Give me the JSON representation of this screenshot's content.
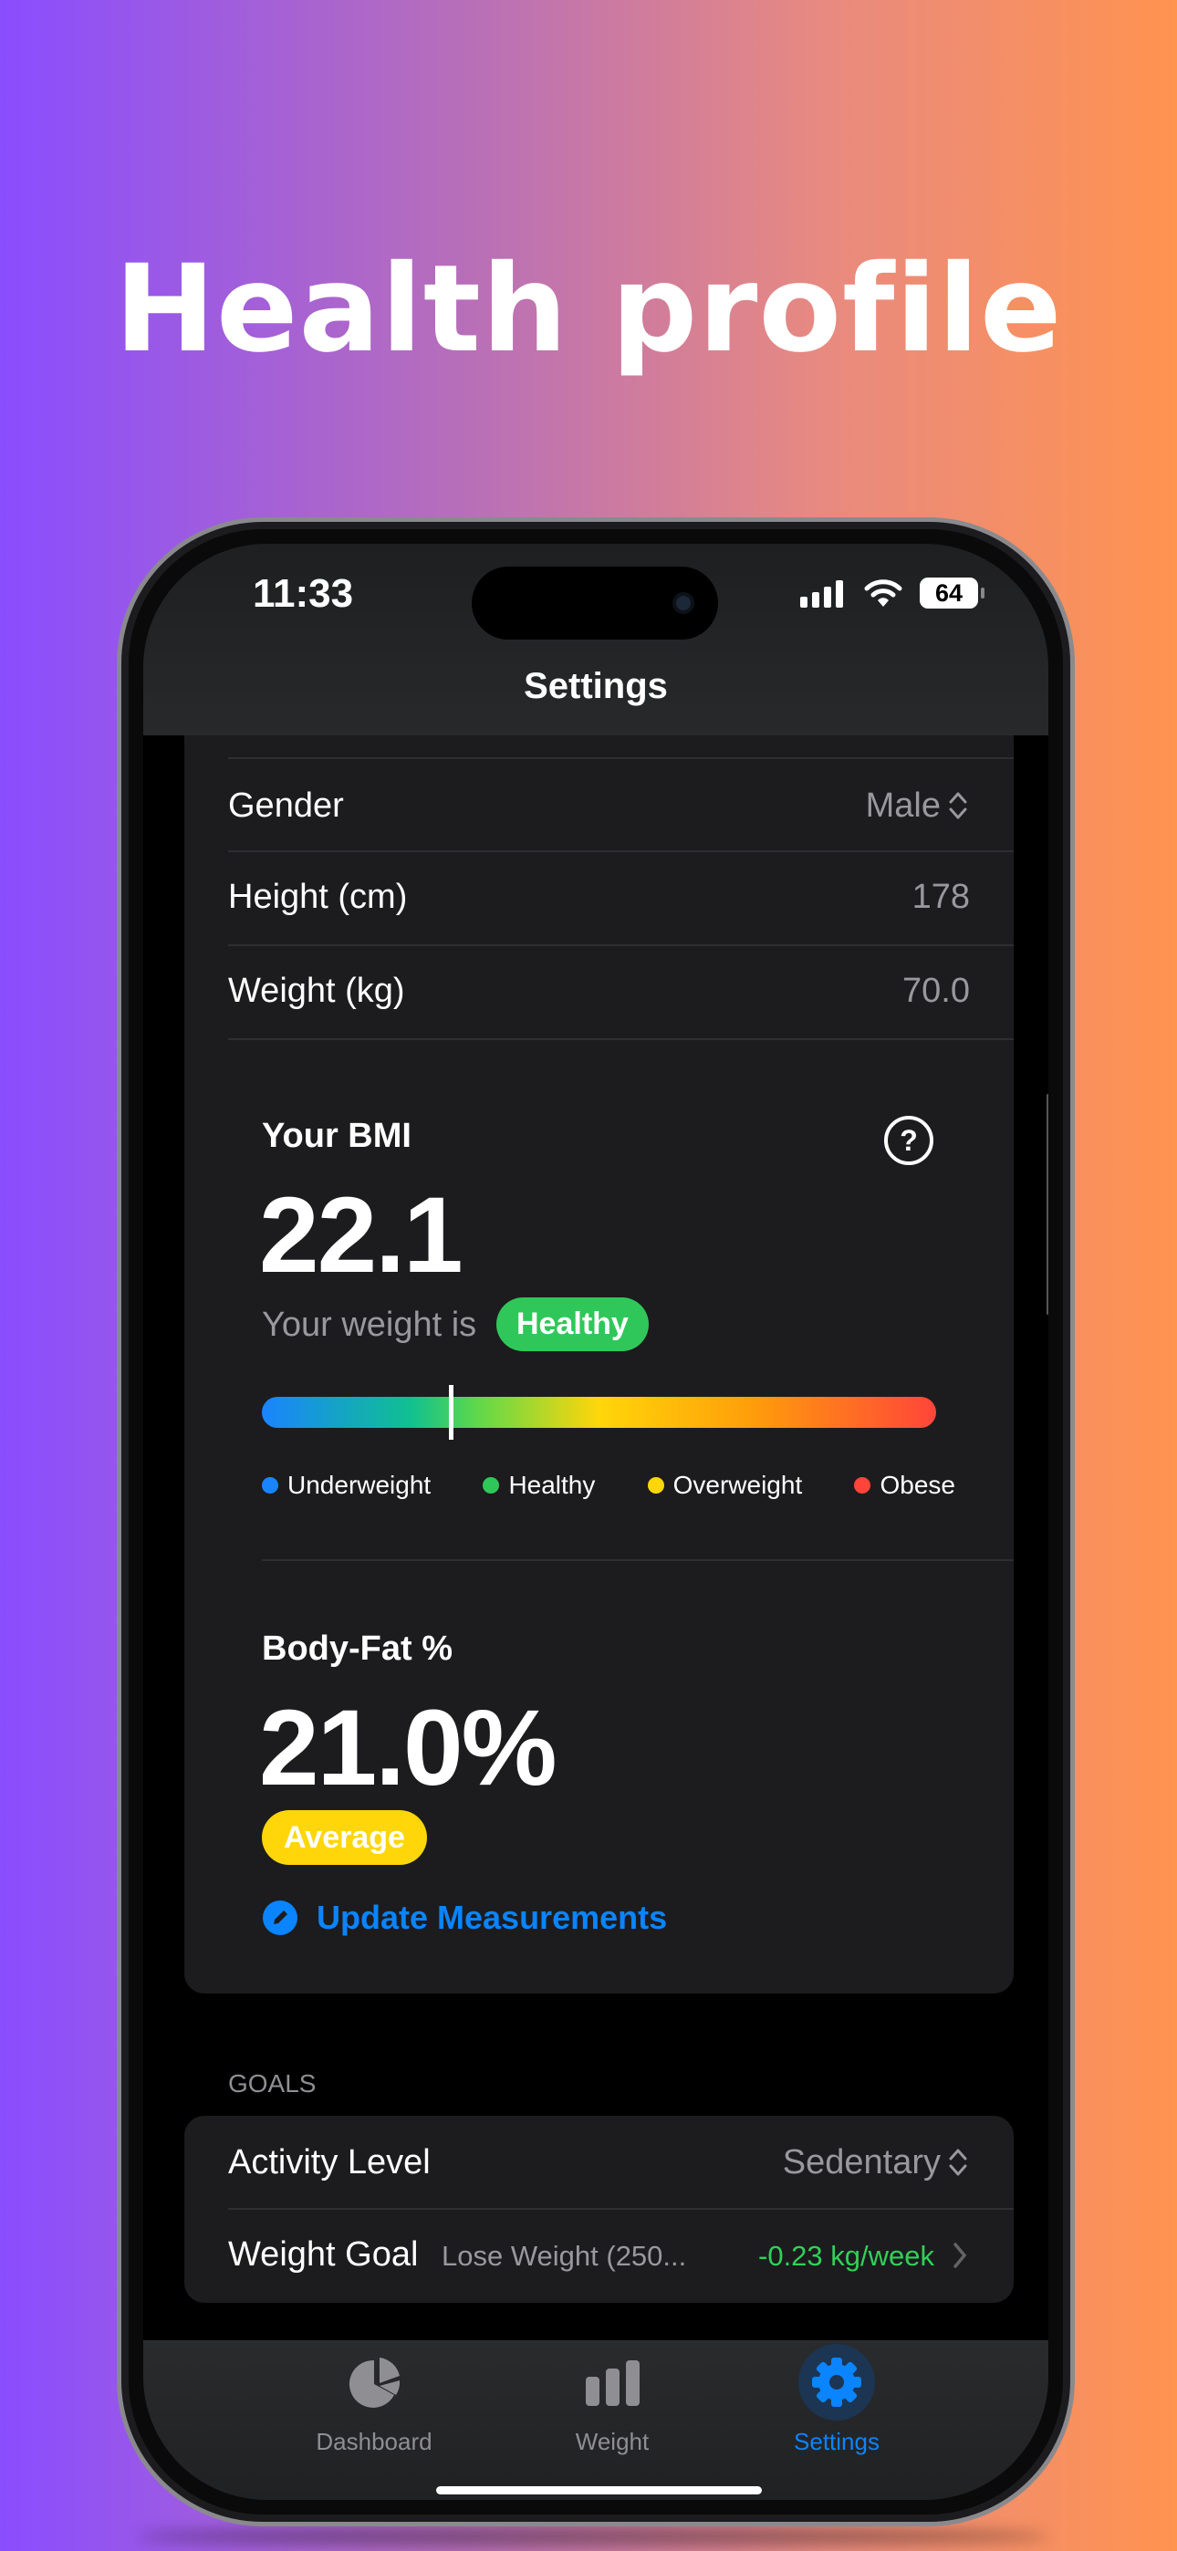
{
  "headline": "Health profile",
  "status_bar": {
    "time": "11:33",
    "battery": "64"
  },
  "nav": {
    "title": "Settings"
  },
  "profile": {
    "rows": [
      {
        "label": "Gender",
        "value": "Male",
        "control": "chevron-up-down"
      },
      {
        "label": "Height (cm)",
        "value": "178"
      },
      {
        "label": "Weight (kg)",
        "value": "70.0"
      }
    ]
  },
  "bmi": {
    "title": "Your BMI",
    "value": "22.1",
    "status_prefix": "Your weight is",
    "status": "Healthy",
    "status_color": "#30c75a",
    "scale_position_pct": 28,
    "legend": [
      {
        "label": "Underweight",
        "color": "#1a84ff"
      },
      {
        "label": "Healthy",
        "color": "#30c75a"
      },
      {
        "label": "Overweight",
        "color": "#ffd60a"
      },
      {
        "label": "Obese",
        "color": "#ff453a"
      }
    ]
  },
  "body_fat": {
    "title": "Body-Fat %",
    "value": "21.0%",
    "status": "Average",
    "status_color": "#ffd60a",
    "update_label": "Update Measurements"
  },
  "goals": {
    "header": "GOALS",
    "activity_label": "Activity Level",
    "activity_value": "Sedentary",
    "weight_goal_label": "Weight Goal",
    "weight_goal_value": "Lose Weight (250...",
    "weight_goal_rate": "-0.23 kg/week"
  },
  "tabs": [
    {
      "label": "Dashboard",
      "icon": "pie-chart-icon",
      "active": false
    },
    {
      "label": "Weight",
      "icon": "bar-chart-icon",
      "active": false
    },
    {
      "label": "Settings",
      "icon": "gear-icon",
      "active": true
    }
  ],
  "colors": {
    "accent": "#0a84ff",
    "positive": "#30d158"
  }
}
